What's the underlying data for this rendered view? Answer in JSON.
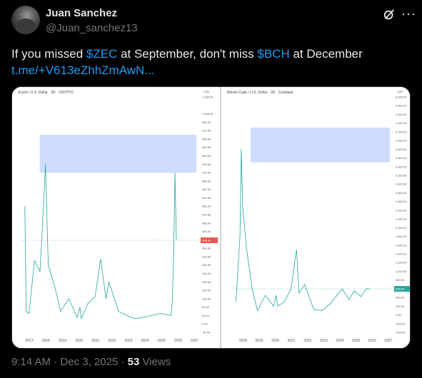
{
  "post": {
    "author_name": "Juan Sanchez",
    "author_handle": "@Juan_sanchez13",
    "text_before": "If you missed ",
    "cashtag1": "$ZEC",
    "text_middle": " at September, don't miss ",
    "cashtag2": "$BCH",
    "text_after": " at December",
    "link": "t.me/+V613eZhhZmAwN...",
    "time": "9:14 AM",
    "sep": " · ",
    "date": "Dec 3, 2025",
    "sep2": " · ",
    "views": "53",
    "views_label": " Views"
  },
  "icons": {
    "grok": "grok-icon",
    "more": "more-icon"
  },
  "colors": {
    "accent": "#1d9bf0",
    "muted": "#71767b",
    "highlight": "#cfdcff",
    "green": "#26a69a",
    "red": "#ef5350"
  },
  "chart_data": [
    {
      "type": "line",
      "title": "Zcash / U.S. Dollar · 3D · CRYPTO",
      "yaxis_label": "USD",
      "y_ticks": [
        "1,080.00",
        "1,000.00",
        "960.00",
        "920.00",
        "880.00",
        "840.00",
        "800.00",
        "760.00",
        "720.00",
        "680.00",
        "640.00",
        "600.00",
        "560.00",
        "520.00",
        "480.00",
        "440.00",
        "400.00",
        "360.00",
        "320.00",
        "280.00",
        "240.00",
        "200.00",
        "160.00",
        "120.00",
        "80.00",
        "40.00",
        "0.00",
        "-40.00"
      ],
      "x_ticks": [
        "2017",
        "2018",
        "2019",
        "2020",
        "2021",
        "2022",
        "2023",
        "2024",
        "2025",
        "2026",
        "2027"
      ],
      "current_price": "398.00",
      "highlight_zone": [
        720,
        900
      ],
      "series": [
        {
          "values": [
            [
              "2016-10",
              560
            ],
            [
              "2016-11",
              60
            ],
            [
              "2017-01",
              50
            ],
            [
              "2017-05",
              300
            ],
            [
              "2017-09",
              250
            ],
            [
              "2017-12",
              620
            ],
            [
              "2018-01",
              760
            ],
            [
              "2018-03",
              280
            ],
            [
              "2018-08",
              170
            ],
            [
              "2018-12",
              60
            ],
            [
              "2019-06",
              120
            ],
            [
              "2019-12",
              30
            ],
            [
              "2020-02",
              80
            ],
            [
              "2020-03",
              25
            ],
            [
              "2020-08",
              100
            ],
            [
              "2021-01",
              130
            ],
            [
              "2021-05",
              310
            ],
            [
              "2021-09",
              120
            ],
            [
              "2021-11",
              200
            ],
            [
              "2022-06",
              60
            ],
            [
              "2022-12",
              40
            ],
            [
              "2023-06",
              25
            ],
            [
              "2024-03",
              35
            ],
            [
              "2024-12",
              50
            ],
            [
              "2025-08",
              40
            ],
            [
              "2025-09",
              100
            ],
            [
              "2025-10",
              300
            ],
            [
              "2025-11",
              720
            ],
            [
              "2025-12",
              398
            ]
          ]
        }
      ]
    },
    {
      "type": "line",
      "title": "Bitcoin Cash / U.S. Dollar · 3D · Coinbase",
      "yaxis_label": "USD",
      "y_ticks": [
        "5,000.00",
        "4,800.00",
        "4,600.00",
        "4,400.00",
        "4,200.00",
        "4,000.00",
        "3,800.00",
        "3,600.00",
        "3,400.00",
        "3,200.00",
        "3,000.00",
        "2,800.00",
        "2,600.00",
        "2,400.00",
        "2,200.00",
        "2,000.00",
        "1,800.00",
        "1,600.00",
        "1,400.00",
        "1,200.00",
        "1,000.00",
        "800.00",
        "600.00",
        "400.00",
        "200.00",
        "0.00",
        "-200.00",
        "-400.00"
      ],
      "x_ticks": [
        "2018",
        "2019",
        "2020",
        "2021",
        "2022",
        "2023",
        "2024",
        "2025",
        "2026",
        "2027"
      ],
      "current_price": "596.96",
      "highlight_zone": [
        3500,
        4300
      ],
      "series": [
        {
          "values": [
            [
              "2017-08",
              300
            ],
            [
              "2017-11",
              1800
            ],
            [
              "2017-12",
              3800
            ],
            [
              "2018-01",
              2500
            ],
            [
              "2018-04",
              1500
            ],
            [
              "2018-08",
              600
            ],
            [
              "2018-12",
              100
            ],
            [
              "2019-06",
              450
            ],
            [
              "2019-12",
              200
            ],
            [
              "2020-02",
              450
            ],
            [
              "2020-03",
              200
            ],
            [
              "2020-08",
              300
            ],
            [
              "2021-01",
              600
            ],
            [
              "2021-05",
              1500
            ],
            [
              "2021-07",
              500
            ],
            [
              "2021-11",
              700
            ],
            [
              "2022-06",
              120
            ],
            [
              "2022-12",
              100
            ],
            [
              "2023-06",
              250
            ],
            [
              "2024-03",
              600
            ],
            [
              "2024-08",
              350
            ],
            [
              "2024-12",
              550
            ],
            [
              "2025-05",
              420
            ],
            [
              "2025-09",
              600
            ],
            [
              "2025-12",
              596.96
            ]
          ]
        }
      ]
    }
  ]
}
